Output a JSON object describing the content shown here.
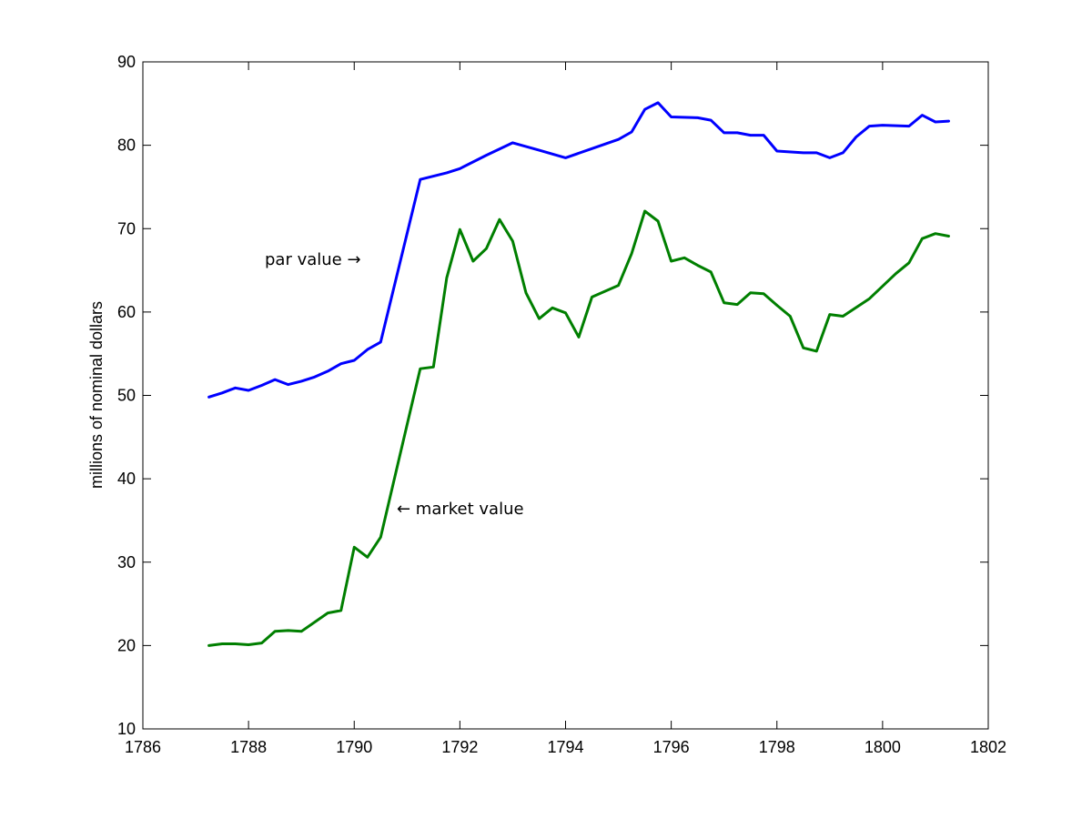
{
  "chart_data": {
    "type": "line",
    "title": "",
    "xlabel": "",
    "ylabel": "millions of nominal dollars",
    "xlim": [
      1786,
      1802
    ],
    "ylim": [
      10,
      90
    ],
    "xticks": [
      "1786",
      "1788",
      "1790",
      "1792",
      "1794",
      "1796",
      "1798",
      "1800",
      "1802"
    ],
    "yticks": [
      "10",
      "20",
      "30",
      "40",
      "50",
      "60",
      "70",
      "80",
      "90"
    ],
    "grid": false,
    "series": [
      {
        "color": "#0000ff",
        "points": [
          [
            1787.25,
            49.8
          ],
          [
            1787.5,
            50.3
          ],
          [
            1787.75,
            50.9
          ],
          [
            1788.0,
            50.6
          ],
          [
            1788.25,
            51.2
          ],
          [
            1788.5,
            51.9
          ],
          [
            1788.75,
            51.3
          ],
          [
            1789.0,
            51.7
          ],
          [
            1789.25,
            52.2
          ],
          [
            1789.5,
            52.9
          ],
          [
            1789.75,
            53.8
          ],
          [
            1790.0,
            54.2
          ],
          [
            1790.25,
            55.5
          ],
          [
            1790.5,
            56.4
          ],
          [
            1791.25,
            75.9
          ],
          [
            1791.75,
            76.7
          ],
          [
            1792.0,
            77.2
          ],
          [
            1792.5,
            78.8
          ],
          [
            1793.0,
            80.3
          ],
          [
            1793.5,
            79.4
          ],
          [
            1794.0,
            78.5
          ],
          [
            1794.5,
            79.6
          ],
          [
            1795.0,
            80.7
          ],
          [
            1795.25,
            81.6
          ],
          [
            1795.5,
            84.3
          ],
          [
            1795.75,
            85.1
          ],
          [
            1796.0,
            83.4
          ],
          [
            1796.5,
            83.3
          ],
          [
            1796.75,
            83.0
          ],
          [
            1797.0,
            81.5
          ],
          [
            1797.25,
            81.5
          ],
          [
            1797.5,
            81.2
          ],
          [
            1797.75,
            81.2
          ],
          [
            1798.0,
            79.3
          ],
          [
            1798.5,
            79.1
          ],
          [
            1798.75,
            79.1
          ],
          [
            1799.0,
            78.5
          ],
          [
            1799.25,
            79.1
          ],
          [
            1799.5,
            81.0
          ],
          [
            1799.75,
            82.3
          ],
          [
            1800.0,
            82.4
          ],
          [
            1800.5,
            82.3
          ],
          [
            1800.75,
            83.6
          ],
          [
            1801.0,
            82.8
          ],
          [
            1801.25,
            82.9
          ]
        ]
      },
      {
        "color": "#007f00",
        "points": [
          [
            1787.25,
            20.0
          ],
          [
            1787.5,
            20.2
          ],
          [
            1787.75,
            20.2
          ],
          [
            1788.0,
            20.1
          ],
          [
            1788.25,
            20.3
          ],
          [
            1788.5,
            21.7
          ],
          [
            1788.75,
            21.8
          ],
          [
            1789.0,
            21.7
          ],
          [
            1789.5,
            23.9
          ],
          [
            1789.75,
            24.2
          ],
          [
            1790.0,
            31.8
          ],
          [
            1790.25,
            30.6
          ],
          [
            1790.5,
            33.0
          ],
          [
            1791.25,
            53.2
          ],
          [
            1791.5,
            53.4
          ],
          [
            1791.75,
            64.1
          ],
          [
            1792.0,
            69.9
          ],
          [
            1792.25,
            66.1
          ],
          [
            1792.5,
            67.6
          ],
          [
            1792.75,
            71.1
          ],
          [
            1793.0,
            68.5
          ],
          [
            1793.25,
            62.3
          ],
          [
            1793.5,
            59.2
          ],
          [
            1793.75,
            60.5
          ],
          [
            1794.0,
            59.9
          ],
          [
            1794.25,
            57.0
          ],
          [
            1794.5,
            61.8
          ],
          [
            1795.0,
            63.2
          ],
          [
            1795.25,
            67.0
          ],
          [
            1795.5,
            72.1
          ],
          [
            1795.75,
            70.9
          ],
          [
            1796.0,
            66.1
          ],
          [
            1796.25,
            66.5
          ],
          [
            1796.5,
            65.6
          ],
          [
            1796.75,
            64.8
          ],
          [
            1797.0,
            61.1
          ],
          [
            1797.25,
            60.9
          ],
          [
            1797.5,
            62.3
          ],
          [
            1797.75,
            62.2
          ],
          [
            1798.0,
            60.8
          ],
          [
            1798.25,
            59.5
          ],
          [
            1798.5,
            55.7
          ],
          [
            1798.75,
            55.3
          ],
          [
            1799.0,
            59.7
          ],
          [
            1799.25,
            59.5
          ],
          [
            1799.75,
            61.6
          ],
          [
            1800.25,
            64.6
          ],
          [
            1800.5,
            65.9
          ],
          [
            1800.75,
            68.8
          ],
          [
            1801.0,
            69.4
          ],
          [
            1801.25,
            69.1
          ]
        ]
      }
    ],
    "annotations": [
      {
        "text": "par value →"
      },
      {
        "text": "← market value"
      }
    ]
  }
}
